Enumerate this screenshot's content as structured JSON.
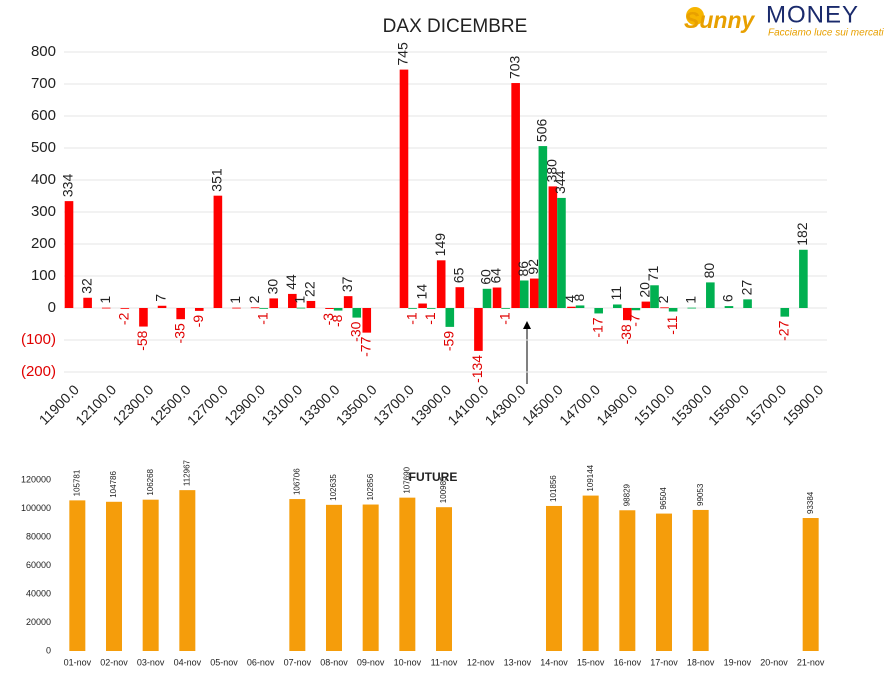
{
  "logo": {
    "brand": "Sunny",
    "brand2": "MONEY",
    "tagline": "Facciamo luce sui mercati"
  },
  "chart_data": [
    {
      "type": "bar",
      "title": "DAX DICEMBRE",
      "categories": [
        "11900.0",
        null,
        "12100.0",
        null,
        "12300.0",
        null,
        "12500.0",
        null,
        "12700.0",
        null,
        "12900.0",
        null,
        "13100.0",
        null,
        "13300.0",
        null,
        "13500.0",
        null,
        "13700.0",
        null,
        "13900.0",
        null,
        "14100.0",
        null,
        "14300.0",
        null,
        "14500.0",
        null,
        "14700.0",
        null,
        "14900.0",
        null,
        "15100.0",
        null,
        "15300.0",
        null,
        "15500.0",
        null,
        "15700.0",
        null,
        "15900.0"
      ],
      "series": [
        {
          "color": "#ff0000",
          "values": [
            334,
            32,
            1,
            -2,
            -58,
            7,
            -35,
            -9,
            351,
            1,
            2,
            30,
            44,
            22,
            -3,
            37,
            -77,
            null,
            745,
            14,
            149,
            65,
            -134,
            64,
            703,
            92,
            380,
            4,
            null,
            null,
            -38,
            20,
            2,
            null,
            null,
            null,
            null,
            null,
            null,
            null,
            null
          ]
        },
        {
          "color": "#00b050",
          "values": [
            null,
            null,
            null,
            null,
            null,
            null,
            null,
            null,
            null,
            null,
            -1,
            null,
            1,
            null,
            -8,
            -30,
            null,
            null,
            -1,
            -1,
            -59,
            null,
            60,
            -1,
            86,
            506,
            344,
            8,
            -17,
            11,
            -7,
            71,
            -11,
            1,
            80,
            6,
            27,
            null,
            -27,
            182,
            null
          ]
        }
      ],
      "ylim": [
        -200,
        800
      ],
      "yticks": [
        {
          "value": -200,
          "label": "(200)"
        },
        {
          "value": -100,
          "label": "(100)"
        },
        0,
        100,
        200,
        300,
        400,
        500,
        600,
        700,
        800
      ],
      "grid": true
    },
    {
      "type": "bar",
      "title": "FUTURE",
      "categories": [
        "01-nov",
        "02-nov",
        "03-nov",
        "04-nov",
        "05-nov",
        "06-nov",
        "07-nov",
        "08-nov",
        "09-nov",
        "10-nov",
        "11-nov",
        "12-nov",
        "13-nov",
        "14-nov",
        "15-nov",
        "16-nov",
        "17-nov",
        "18-nov",
        "19-nov",
        "20-nov",
        "21-nov"
      ],
      "values": [
        105781,
        104786,
        106268,
        112967,
        null,
        null,
        106706,
        102635,
        102856,
        107690,
        100985,
        null,
        null,
        101856,
        109144,
        98829,
        96504,
        99053,
        null,
        null,
        93384
      ],
      "color": "#f59d0b",
      "ylim": [
        0,
        125000
      ],
      "yticks": [
        0,
        20000,
        40000,
        60000,
        80000,
        100000,
        120000
      ],
      "grid": false
    }
  ]
}
